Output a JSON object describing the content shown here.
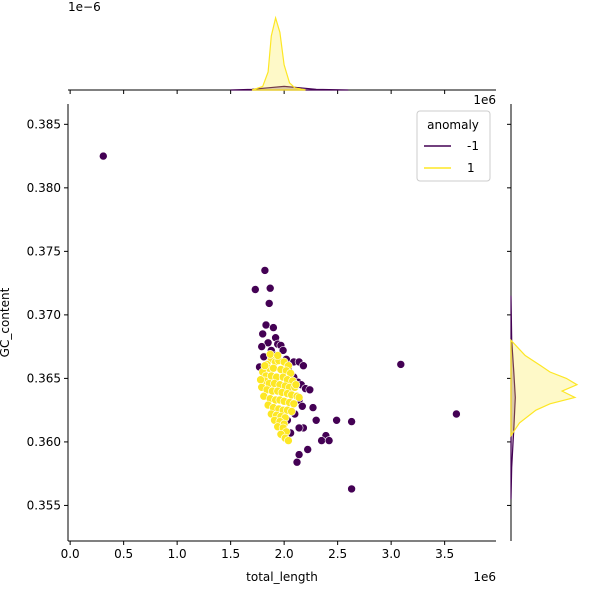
{
  "chart_data": {
    "type": "scatter",
    "title": "",
    "xlabel": "total_length",
    "ylabel": "GC_content",
    "x_offset_label": "1e6",
    "y_offset_label": "1e6",
    "top_marginal_offset_label": "1e−6",
    "xlim": [
      -0.02,
      3.98
    ],
    "ylim": [
      0.3522,
      0.3866
    ],
    "x_ticks": [
      {
        "value": 0.0,
        "label": "0.0"
      },
      {
        "value": 0.5,
        "label": "0.5"
      },
      {
        "value": 1.0,
        "label": "1.0"
      },
      {
        "value": 1.5,
        "label": "1.5"
      },
      {
        "value": 2.0,
        "label": "2.0"
      },
      {
        "value": 2.5,
        "label": "2.5"
      },
      {
        "value": 3.0,
        "label": "3.0"
      },
      {
        "value": 3.5,
        "label": "3.5"
      }
    ],
    "y_ticks": [
      {
        "value": 0.355,
        "label": "0.355"
      },
      {
        "value": 0.36,
        "label": "0.360"
      },
      {
        "value": 0.365,
        "label": "0.365"
      },
      {
        "value": 0.37,
        "label": "0.370"
      },
      {
        "value": 0.375,
        "label": "0.375"
      },
      {
        "value": 0.38,
        "label": "0.380"
      },
      {
        "value": 0.385,
        "label": "0.385"
      }
    ],
    "grid": false,
    "legend": {
      "title": "anomaly",
      "placement": "top-right"
    },
    "series": [
      {
        "name": "-1",
        "color": "#440154",
        "points": [
          [
            0.31,
            0.3825
          ],
          [
            1.82,
            0.3735
          ],
          [
            1.73,
            0.372
          ],
          [
            1.87,
            0.3721
          ],
          [
            1.86,
            0.3709
          ],
          [
            1.83,
            0.3692
          ],
          [
            1.9,
            0.369
          ],
          [
            1.8,
            0.3685
          ],
          [
            1.92,
            0.3682
          ],
          [
            1.85,
            0.3678
          ],
          [
            1.94,
            0.3677
          ],
          [
            1.79,
            0.3675
          ],
          [
            1.97,
            0.3676
          ],
          [
            1.88,
            0.3672
          ],
          [
            1.99,
            0.3672
          ],
          [
            1.81,
            0.3667
          ],
          [
            2.02,
            0.3665
          ],
          [
            1.92,
            0.3668
          ],
          [
            2.09,
            0.3663
          ],
          [
            2.14,
            0.3663
          ],
          [
            2.18,
            0.366
          ],
          [
            1.77,
            0.3659
          ],
          [
            2.04,
            0.3657
          ],
          [
            2.09,
            0.3651
          ],
          [
            2.13,
            0.3647
          ],
          [
            2.16,
            0.3645
          ],
          [
            2.05,
            0.3642
          ],
          [
            2.2,
            0.3642
          ],
          [
            2.24,
            0.3641
          ],
          [
            2.14,
            0.3633
          ],
          [
            2.17,
            0.3628
          ],
          [
            2.27,
            0.3627
          ],
          [
            2.1,
            0.3622
          ],
          [
            2.3,
            0.3617
          ],
          [
            2.03,
            0.3617
          ],
          [
            2.18,
            0.3611
          ],
          [
            2.14,
            0.3611
          ],
          [
            2.06,
            0.3607
          ],
          [
            2.39,
            0.3605
          ],
          [
            2.35,
            0.3601
          ],
          [
            2.42,
            0.3601
          ],
          [
            2.22,
            0.3594
          ],
          [
            2.14,
            0.359
          ],
          [
            2.12,
            0.3584
          ],
          [
            2.49,
            0.3617
          ],
          [
            2.63,
            0.3616
          ],
          [
            3.09,
            0.3661
          ],
          [
            3.61,
            0.3622
          ],
          [
            2.63,
            0.3563
          ]
        ]
      },
      {
        "name": "1",
        "color": "#fde725",
        "points": [
          [
            1.88,
            0.3665
          ],
          [
            1.92,
            0.3663
          ],
          [
            1.95,
            0.3664
          ],
          [
            2.0,
            0.3663
          ],
          [
            1.84,
            0.3661
          ],
          [
            2.04,
            0.366
          ],
          [
            1.86,
            0.3658
          ],
          [
            1.9,
            0.3658
          ],
          [
            1.97,
            0.3657
          ],
          [
            2.02,
            0.3656
          ],
          [
            2.06,
            0.3654
          ],
          [
            1.8,
            0.3655
          ],
          [
            1.83,
            0.3652
          ],
          [
            1.88,
            0.3652
          ],
          [
            1.93,
            0.3651
          ],
          [
            1.99,
            0.3651
          ],
          [
            2.03,
            0.3649
          ],
          [
            2.08,
            0.3648
          ],
          [
            1.82,
            0.3648
          ],
          [
            1.86,
            0.3646
          ],
          [
            1.91,
            0.3646
          ],
          [
            1.96,
            0.3645
          ],
          [
            2.01,
            0.3644
          ],
          [
            2.05,
            0.3643
          ],
          [
            2.1,
            0.3643
          ],
          [
            1.79,
            0.3643
          ],
          [
            1.84,
            0.3641
          ],
          [
            1.89,
            0.364
          ],
          [
            1.94,
            0.364
          ],
          [
            1.98,
            0.3639
          ],
          [
            2.03,
            0.3638
          ],
          [
            2.07,
            0.3637
          ],
          [
            2.12,
            0.3636
          ],
          [
            1.81,
            0.3636
          ],
          [
            1.87,
            0.3634
          ],
          [
            1.92,
            0.3633
          ],
          [
            1.96,
            0.3633
          ],
          [
            2.0,
            0.3632
          ],
          [
            2.05,
            0.3631
          ],
          [
            2.09,
            0.363
          ],
          [
            1.85,
            0.3629
          ],
          [
            1.9,
            0.3627
          ],
          [
            1.95,
            0.3626
          ],
          [
            1.99,
            0.3625
          ],
          [
            2.03,
            0.3625
          ],
          [
            2.07,
            0.3624
          ],
          [
            1.88,
            0.3622
          ],
          [
            1.93,
            0.3621
          ],
          [
            1.97,
            0.362
          ],
          [
            2.01,
            0.3619
          ],
          [
            1.91,
            0.3617
          ],
          [
            1.96,
            0.3616
          ],
          [
            2.0,
            0.3614
          ],
          [
            1.94,
            0.3612
          ],
          [
            1.99,
            0.3611
          ],
          [
            2.02,
            0.3608
          ],
          [
            1.97,
            0.3606
          ],
          [
            2.01,
            0.3603
          ],
          [
            2.04,
            0.3601
          ],
          [
            1.87,
            0.3669
          ],
          [
            1.94,
            0.3668
          ],
          [
            1.82,
            0.366
          ],
          [
            2.11,
            0.3645
          ],
          [
            2.14,
            0.3635
          ],
          [
            1.78,
            0.3649
          ]
        ]
      }
    ],
    "marginal_x": {
      "series": [
        {
          "name": "-1",
          "color": "#440154",
          "x": [
            1.5,
            1.7,
            1.85,
            2.0,
            2.15,
            2.3,
            2.6
          ],
          "density": [
            0.0,
            0.01,
            0.03,
            0.05,
            0.03,
            0.01,
            0.0
          ]
        },
        {
          "name": "1",
          "color": "#fde725",
          "x": [
            1.7,
            1.8,
            1.85,
            1.88,
            1.92,
            1.96,
            2.0,
            2.05,
            2.1,
            2.2
          ],
          "density": [
            0.0,
            0.05,
            0.25,
            0.75,
            1.0,
            0.8,
            0.35,
            0.1,
            0.03,
            0.0
          ]
        }
      ]
    },
    "marginal_y": {
      "series": [
        {
          "name": "-1",
          "color": "#440154",
          "y": [
            0.3555,
            0.358,
            0.361,
            0.3635,
            0.3655,
            0.368,
            0.3715
          ],
          "density": [
            0.0,
            0.01,
            0.04,
            0.06,
            0.04,
            0.01,
            0.0
          ]
        },
        {
          "name": "1",
          "color": "#fde725",
          "y": [
            0.3605,
            0.3615,
            0.3625,
            0.363,
            0.3635,
            0.364,
            0.3645,
            0.365,
            0.3655,
            0.366,
            0.3668,
            0.368
          ],
          "density": [
            0.0,
            0.12,
            0.35,
            0.55,
            0.9,
            0.72,
            0.93,
            0.78,
            0.55,
            0.42,
            0.2,
            0.0
          ]
        }
      ]
    }
  }
}
